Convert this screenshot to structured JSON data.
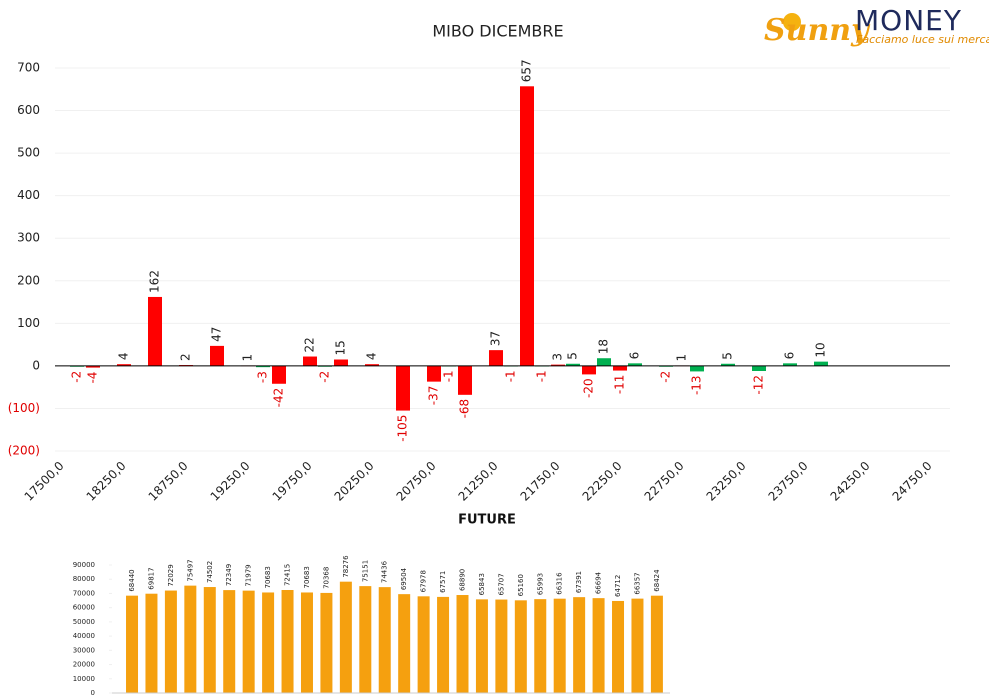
{
  "header": {
    "logo_brand": "Sunny",
    "logo_name": "MONEY",
    "tagline": "Facciamo luce sui mercati"
  },
  "chart_data": [
    {
      "type": "bar",
      "title": "MIBO DICEMBRE",
      "categories": [
        "17500,0",
        null,
        "18250,0",
        null,
        "18750,0",
        null,
        "19250,0",
        null,
        "19750,0",
        null,
        "20250,0",
        null,
        "20750,0",
        null,
        "21250,0",
        null,
        "21750,0",
        null,
        "22250,0",
        null,
        "22750,0",
        null,
        "23250,0",
        null,
        "23750,0",
        null,
        "24250,0",
        null,
        "24750,0"
      ],
      "series": [
        {
          "color": "#ff0000",
          "values": [
            null,
            -4,
            4,
            162,
            2,
            47,
            1,
            -42,
            22,
            15,
            4,
            -105,
            -37,
            -68,
            37,
            657,
            3,
            -20,
            -11,
            null,
            1,
            null,
            null,
            null,
            null,
            null,
            null,
            null,
            null
          ]
        },
        {
          "color": "#00b050",
          "values": [
            -2,
            null,
            null,
            null,
            null,
            null,
            -3,
            null,
            -2,
            null,
            null,
            null,
            -1,
            null,
            -1,
            -1,
            5,
            18,
            6,
            -2,
            -13,
            5,
            -12,
            6,
            10,
            null,
            null,
            null,
            null
          ]
        }
      ],
      "ylim": [
        -200,
        700
      ],
      "yticks": [
        {
          "value": -200,
          "label": "(200)"
        },
        {
          "value": -100,
          "label": "(100)"
        },
        0,
        100,
        200,
        300,
        400,
        500,
        600,
        700
      ],
      "grid": true
    },
    {
      "type": "bar",
      "title": "FUTURE",
      "color": "#f5a00f",
      "values": [
        68440,
        69817,
        72029,
        75497,
        74502,
        72349,
        71979,
        70683,
        72415,
        70683,
        70368,
        78276,
        75151,
        74436,
        69504,
        67978,
        67571,
        68890,
        65843,
        65707,
        65160,
        65993,
        66316,
        67391,
        66694,
        64712,
        66357,
        68424
      ],
      "ylim": [
        0,
        90000
      ],
      "yticks": [
        0,
        10000,
        20000,
        30000,
        40000,
        50000,
        60000,
        70000,
        80000,
        90000
      ],
      "grid": false
    }
  ]
}
